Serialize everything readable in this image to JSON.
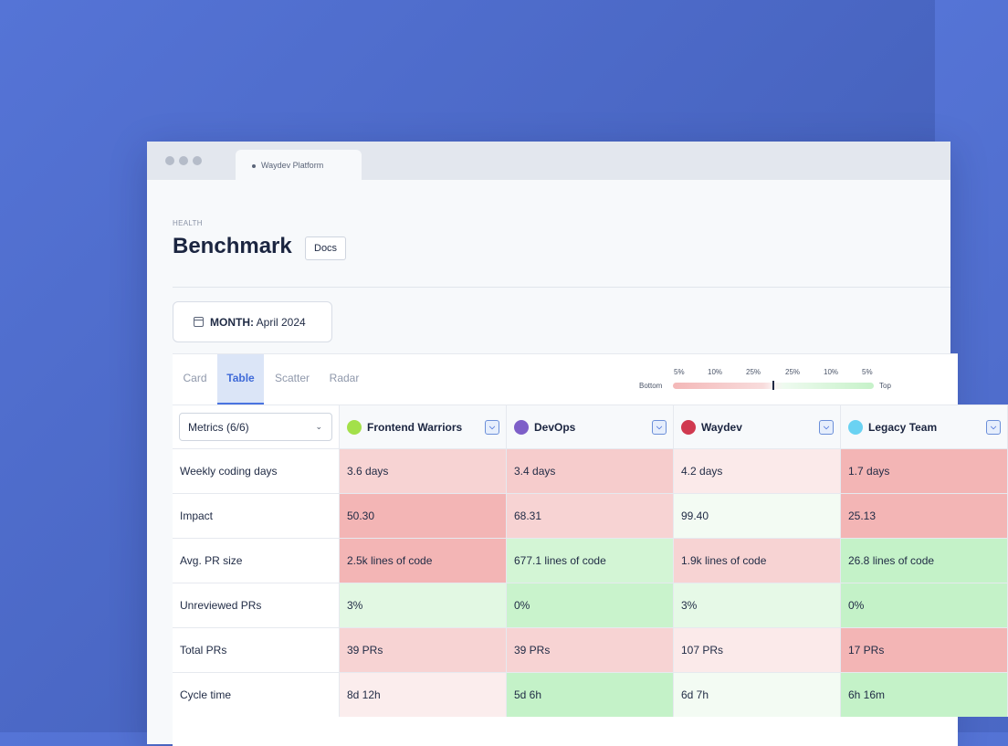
{
  "window": {
    "tab_title": "Waydev Platform"
  },
  "page": {
    "eyebrow": "HEALTH",
    "title": "Benchmark",
    "docs_label": "Docs"
  },
  "filter": {
    "month_label": "MONTH:",
    "month_value": "April 2024"
  },
  "view_tabs": [
    "Card",
    "Table",
    "Scatter",
    "Radar"
  ],
  "active_tab": "Table",
  "legend": {
    "ticks": [
      "5%",
      "10%",
      "25%",
      "25%",
      "10%",
      "5%"
    ],
    "bottom": "Bottom",
    "top": "Top"
  },
  "metrics_select": "Metrics (6/6)",
  "teams": [
    {
      "name": "Frontend Warriors",
      "color": "#a3e04a"
    },
    {
      "name": "DevOps",
      "color": "#7e5fc8"
    },
    {
      "name": "Waydev",
      "color": "#d0394f"
    },
    {
      "name": "Legacy Team",
      "color": "#6ad2f2"
    }
  ],
  "rows": [
    {
      "metric": "Weekly coding days",
      "values": [
        "3.6 days",
        "3.4 days",
        "4.2 days",
        "1.7 days"
      ],
      "colors": [
        "#f7d3d3",
        "#f6cccc",
        "#fbeaea",
        "#f3b5b5"
      ]
    },
    {
      "metric": "Impact",
      "values": [
        "50.30",
        "68.31",
        "99.40",
        "25.13"
      ],
      "colors": [
        "#f3b5b5",
        "#f7d3d3",
        "#f3fbf3",
        "#f3b5b5"
      ]
    },
    {
      "metric": "Avg. PR size",
      "values": [
        "2.5k lines of code",
        "677.1 lines of code",
        "1.9k lines of code",
        "26.8 lines of code"
      ],
      "colors": [
        "#f3b5b5",
        "#d3f5d5",
        "#f7d3d3",
        "#c4f2c8"
      ]
    },
    {
      "metric": "Unreviewed PRs",
      "values": [
        "3%",
        "0%",
        "3%",
        "0%"
      ],
      "colors": [
        "#e2f8e3",
        "#c9f3cc",
        "#e6f9e7",
        "#c4f2c8"
      ]
    },
    {
      "metric": "Total PRs",
      "values": [
        "39 PRs",
        "39 PRs",
        "107 PRs",
        "17 PRs"
      ],
      "colors": [
        "#f7d3d3",
        "#f7d3d3",
        "#fbeaea",
        "#f3b5b5"
      ]
    },
    {
      "metric": "Cycle time",
      "values": [
        "8d 12h",
        "5d 6h",
        "6d 7h",
        "6h 16m"
      ],
      "colors": [
        "#fbeded",
        "#c4f2c8",
        "#f3fbf3",
        "#c4f2c8"
      ]
    }
  ]
}
